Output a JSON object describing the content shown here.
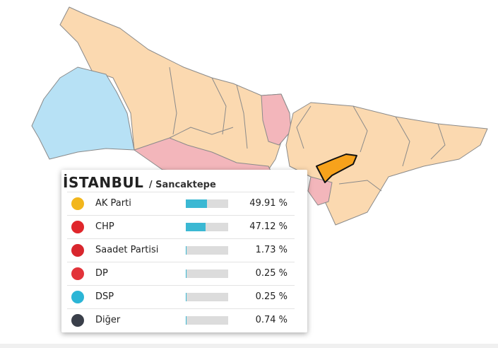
{
  "panel": {
    "title": "İSTANBUL",
    "subtitle": "/ Sancaktepe",
    "bar_color": "#3bb8d3",
    "parties": [
      {
        "name": "AK Parti",
        "value": 49.91,
        "label": "49.91 %",
        "icon_color": "#f2b61c"
      },
      {
        "name": "CHP",
        "value": 47.12,
        "label": "47.12 %",
        "icon_color": "#e0262b"
      },
      {
        "name": "Saadet Partisi",
        "value": 1.73,
        "label": "1.73 %",
        "icon_color": "#d8262d"
      },
      {
        "name": "DP",
        "value": 0.25,
        "label": "0.25 %",
        "icon_color": "#e2333a"
      },
      {
        "name": "DSP",
        "value": 0.25,
        "label": "0.25 %",
        "icon_color": "#2bb5d6"
      },
      {
        "name": "Diğer",
        "value": 0.74,
        "label": "0.74 %",
        "icon_color": "#3a3f4a"
      }
    ]
  }
}
